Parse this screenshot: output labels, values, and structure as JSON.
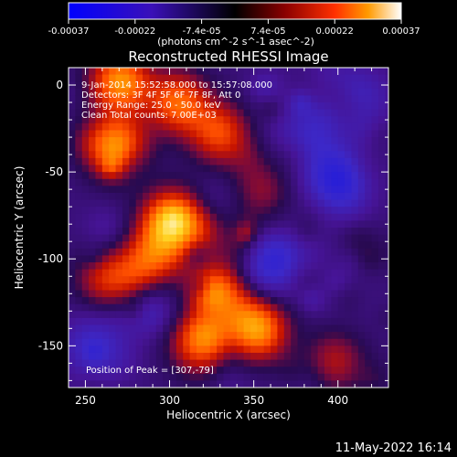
{
  "chart_data": {
    "type": "heatmap",
    "title": "Reconstructed RHESSI Image",
    "xlabel": "Heliocentric X (arcsec)",
    "ylabel": "Heliocentric Y (arcsec)",
    "xlim": [
      240,
      430
    ],
    "ylim": [
      -174,
      10
    ],
    "x_ticks": [
      250,
      300,
      350,
      400
    ],
    "y_ticks": [
      0,
      -50,
      -100,
      -150
    ],
    "colorbar": {
      "ticks": [
        "-0.00037",
        "-0.00022",
        "-7.4e-05",
        "7.4e-05",
        "0.00022",
        "0.00037"
      ],
      "range": [
        -0.00037,
        0.00037
      ],
      "units": "(photons cm^-2 s^-1 asec^-2)"
    },
    "annotations": [
      "9-Jan-2014 15:52:58.000 to 15:57:08.000",
      "Detectors: 3F 4F 5F 6F 7F 8F, Att 0",
      "Energy Range: 25.0 - 50.0 keV",
      "Clean     Total counts: 7.00E+03"
    ],
    "peak_label": "Position of Peak = [307,-79]",
    "peak": [
      307,
      -79
    ],
    "bright_sources": [
      {
        "x": 302,
        "y": -79,
        "level": 0.92
      },
      {
        "x": 268,
        "y": -36,
        "level": 0.75
      },
      {
        "x": 270,
        "y": 2,
        "level": 0.72
      },
      {
        "x": 305,
        "y": -10,
        "level": 0.62
      },
      {
        "x": 330,
        "y": -28,
        "level": 0.55
      },
      {
        "x": 352,
        "y": -140,
        "level": 0.78
      },
      {
        "x": 318,
        "y": -150,
        "level": 0.7
      },
      {
        "x": 330,
        "y": -118,
        "level": 0.6
      },
      {
        "x": 288,
        "y": -102,
        "level": 0.55
      },
      {
        "x": 262,
        "y": -112,
        "level": 0.45
      },
      {
        "x": 400,
        "y": -158,
        "level": 0.4
      },
      {
        "x": 355,
        "y": -60,
        "level": 0.3
      }
    ],
    "dark_sources": [
      {
        "x": 400,
        "y": -55,
        "level": -0.6
      },
      {
        "x": 410,
        "y": -10,
        "level": -0.5
      },
      {
        "x": 360,
        "y": -105,
        "level": -0.45
      },
      {
        "x": 380,
        "y": -30,
        "level": -0.4
      },
      {
        "x": 255,
        "y": -150,
        "level": -0.4
      },
      {
        "x": 285,
        "y": -125,
        "level": -0.3
      }
    ]
  },
  "footer": {
    "timestamp": "11-May-2022 16:14"
  }
}
